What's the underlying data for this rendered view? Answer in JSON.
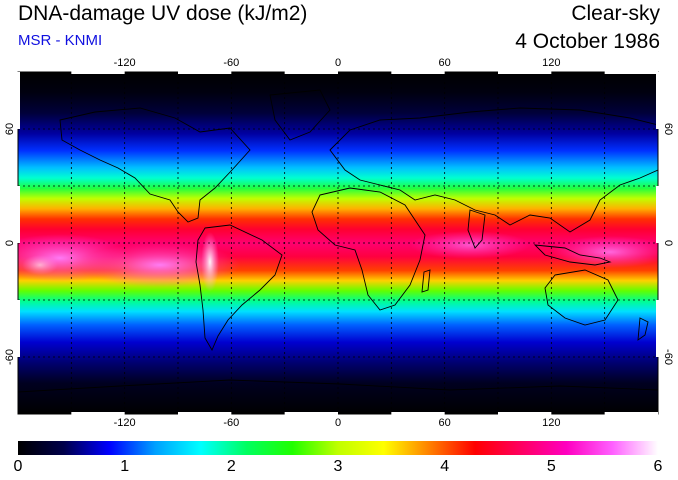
{
  "header": {
    "title": "DNA-damage UV dose (kJ/m2)",
    "subtitle": "MSR - KNMI",
    "condition": "Clear-sky",
    "date": "4 October 1986"
  },
  "map": {
    "projection": "equirectangular",
    "lon_range": [
      -180,
      180
    ],
    "lat_range": [
      -90,
      90
    ],
    "lon_ticks": [
      "-120",
      "-60",
      "0",
      "60",
      "120"
    ],
    "lat_ticks": [
      "60",
      "0",
      "-60"
    ],
    "grid": "dotted every 30 degrees"
  },
  "colorbar": {
    "min": 0,
    "max": 6,
    "labels": [
      "0",
      "1",
      "2",
      "3",
      "4",
      "5",
      "6"
    ],
    "colors": [
      "#000000",
      "#00004a",
      "#0000ff",
      "#00a0ff",
      "#00ffff",
      "#00ff60",
      "#20ff00",
      "#c0ff00",
      "#ffff00",
      "#ff8000",
      "#ff0000",
      "#ff0060",
      "#ff00c0",
      "#ff60ff",
      "#ffffff"
    ]
  }
}
